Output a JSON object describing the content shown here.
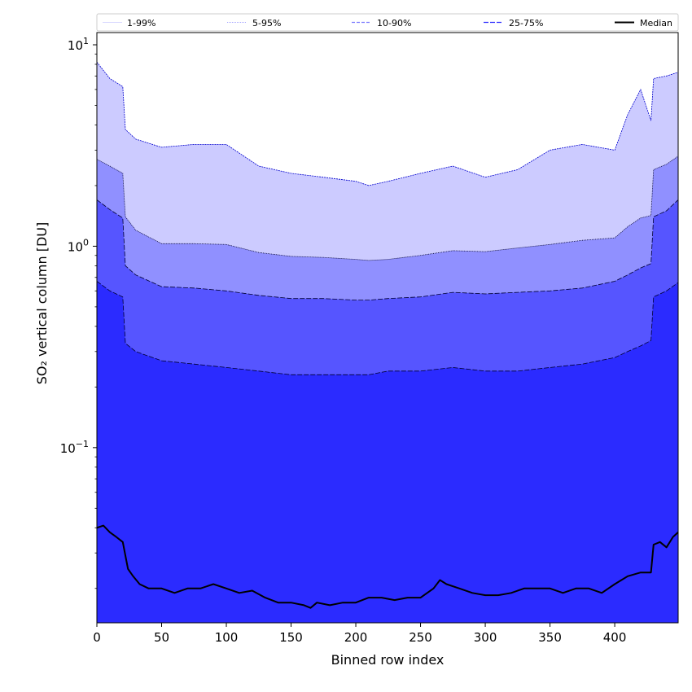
{
  "chart_data": {
    "type": "area",
    "xlabel": "Binned row index",
    "ylabel": "SO₂ vertical column [DU]",
    "yscale": "log",
    "xlim": [
      0,
      449
    ],
    "ylim": [
      0.0135,
      11.5
    ],
    "xticks": [
      0,
      50,
      100,
      150,
      200,
      250,
      300,
      350,
      400
    ],
    "yticks": [
      {
        "value": 0.1,
        "base": "10",
        "exp": "−1"
      },
      {
        "value": 1,
        "base": "10",
        "exp": "0"
      },
      {
        "value": 10,
        "base": "10",
        "exp": "1"
      }
    ],
    "legend": {
      "placement": "top",
      "entries": [
        "1-99%",
        "5-95%",
        "10-90%",
        "25-75%",
        "Median"
      ]
    },
    "x": [
      0,
      10,
      20,
      22,
      30,
      50,
      75,
      100,
      125,
      150,
      175,
      200,
      210,
      225,
      250,
      275,
      300,
      325,
      350,
      375,
      400,
      410,
      420,
      428,
      430,
      440,
      449
    ],
    "bands": [
      {
        "name": "1-99%",
        "color": "#cccbff",
        "lower": [
          0.0135,
          0.0135,
          0.0135,
          0.0135,
          0.0135,
          0.0135,
          0.0135,
          0.0135,
          0.0135,
          0.0135,
          0.0135,
          0.0135,
          0.0135,
          0.0135,
          0.0135,
          0.0135,
          0.0135,
          0.0135,
          0.0135,
          0.0135,
          0.0135,
          0.0135,
          0.0135,
          0.0135,
          0.0135,
          0.0135,
          0.0135
        ],
        "upper": [
          8.2,
          6.8,
          6.2,
          3.8,
          3.4,
          3.1,
          3.2,
          3.2,
          2.5,
          2.3,
          2.2,
          2.1,
          2.0,
          2.1,
          2.3,
          2.5,
          2.2,
          2.4,
          3.0,
          3.2,
          3.0,
          4.5,
          6.0,
          4.2,
          6.8,
          7.0,
          7.3
        ]
      },
      {
        "name": "5-95%",
        "color": "#9090ff",
        "lower": [
          0.0135,
          0.0135,
          0.0135,
          0.0135,
          0.0135,
          0.0135,
          0.0135,
          0.0135,
          0.0135,
          0.0135,
          0.0135,
          0.0135,
          0.0135,
          0.0135,
          0.0135,
          0.0135,
          0.0135,
          0.0135,
          0.0135,
          0.0135,
          0.0135,
          0.0135,
          0.0135,
          0.0135,
          0.0135,
          0.0135,
          0.0135
        ],
        "upper": [
          2.7,
          2.5,
          2.3,
          1.4,
          1.2,
          1.03,
          1.03,
          1.02,
          0.93,
          0.89,
          0.88,
          0.86,
          0.85,
          0.86,
          0.9,
          0.95,
          0.94,
          0.98,
          1.02,
          1.07,
          1.1,
          1.25,
          1.38,
          1.42,
          2.4,
          2.55,
          2.8
        ]
      },
      {
        "name": "10-90%",
        "color": "#5655ff",
        "lower": [
          0.0135,
          0.0135,
          0.0135,
          0.0135,
          0.0135,
          0.0135,
          0.0135,
          0.0135,
          0.0135,
          0.0135,
          0.0135,
          0.0135,
          0.0135,
          0.0135,
          0.0135,
          0.0135,
          0.0135,
          0.0135,
          0.0135,
          0.0135,
          0.0135,
          0.0135,
          0.0135,
          0.0135,
          0.0135,
          0.0135,
          0.0135
        ],
        "upper": [
          1.7,
          1.52,
          1.38,
          0.8,
          0.72,
          0.63,
          0.62,
          0.6,
          0.57,
          0.55,
          0.55,
          0.54,
          0.54,
          0.55,
          0.56,
          0.59,
          0.58,
          0.59,
          0.6,
          0.62,
          0.67,
          0.72,
          0.78,
          0.82,
          1.4,
          1.5,
          1.7
        ]
      },
      {
        "name": "25-75%",
        "color": "#2b2bff",
        "lower": [
          0.0135,
          0.0135,
          0.0135,
          0.0135,
          0.0135,
          0.0135,
          0.0135,
          0.0135,
          0.0135,
          0.0135,
          0.0135,
          0.0135,
          0.0135,
          0.0135,
          0.0135,
          0.0135,
          0.0135,
          0.0135,
          0.0135,
          0.0135,
          0.0135,
          0.0135,
          0.0135,
          0.0135,
          0.0135,
          0.0135,
          0.0135
        ],
        "upper": [
          0.67,
          0.6,
          0.56,
          0.33,
          0.3,
          0.27,
          0.26,
          0.25,
          0.24,
          0.23,
          0.23,
          0.23,
          0.23,
          0.24,
          0.24,
          0.25,
          0.24,
          0.24,
          0.25,
          0.26,
          0.28,
          0.3,
          0.32,
          0.34,
          0.56,
          0.6,
          0.66
        ]
      }
    ],
    "median": {
      "name": "Median",
      "color": "#000000",
      "x": [
        0,
        5,
        10,
        15,
        20,
        24,
        28,
        33,
        40,
        50,
        60,
        70,
        80,
        90,
        100,
        110,
        120,
        130,
        140,
        150,
        160,
        165,
        170,
        180,
        190,
        200,
        210,
        220,
        230,
        240,
        250,
        260,
        265,
        270,
        280,
        290,
        300,
        310,
        320,
        330,
        340,
        350,
        360,
        370,
        380,
        390,
        400,
        410,
        420,
        428,
        430,
        435,
        440,
        445,
        449
      ],
      "y": [
        0.04,
        0.041,
        0.038,
        0.036,
        0.034,
        0.025,
        0.023,
        0.021,
        0.02,
        0.02,
        0.019,
        0.02,
        0.02,
        0.021,
        0.02,
        0.019,
        0.0195,
        0.018,
        0.017,
        0.017,
        0.0165,
        0.016,
        0.017,
        0.0165,
        0.017,
        0.017,
        0.018,
        0.018,
        0.0175,
        0.018,
        0.018,
        0.02,
        0.022,
        0.021,
        0.02,
        0.019,
        0.0185,
        0.0185,
        0.019,
        0.02,
        0.02,
        0.02,
        0.019,
        0.02,
        0.02,
        0.019,
        0.021,
        0.023,
        0.024,
        0.024,
        0.033,
        0.034,
        0.032,
        0.036,
        0.038
      ]
    }
  }
}
